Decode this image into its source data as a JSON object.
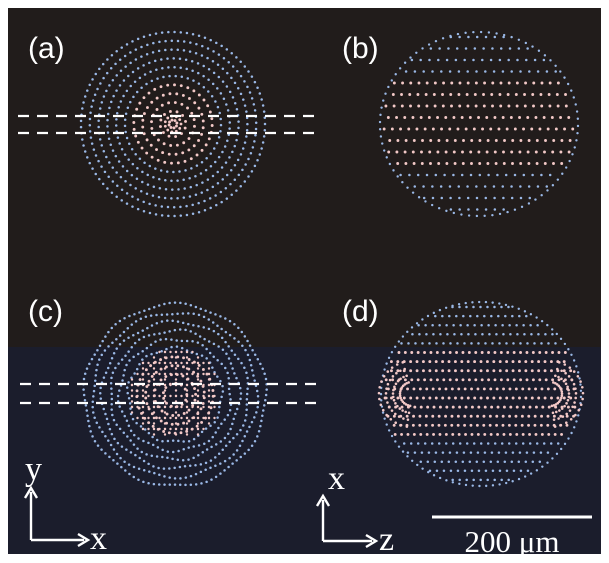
{
  "panels": [
    {
      "id": "a",
      "label": "(a)"
    },
    {
      "id": "b",
      "label": "(b)"
    },
    {
      "id": "c",
      "label": "(c)"
    },
    {
      "id": "d",
      "label": "(d)"
    }
  ],
  "axes": {
    "top_left_vertical": "y",
    "top_left_horizontal": "x",
    "bottom_right_vertical": "x",
    "bottom_right_horizontal": "z"
  },
  "scale_bar": {
    "label": "200 μm"
  },
  "colors": {
    "top_background": "#211c1b",
    "bottom_background": "#1b1d2c",
    "outer_particles": "#9ab8e6",
    "inner_particles": "#f3c9c7",
    "text": "#ffffff"
  }
}
